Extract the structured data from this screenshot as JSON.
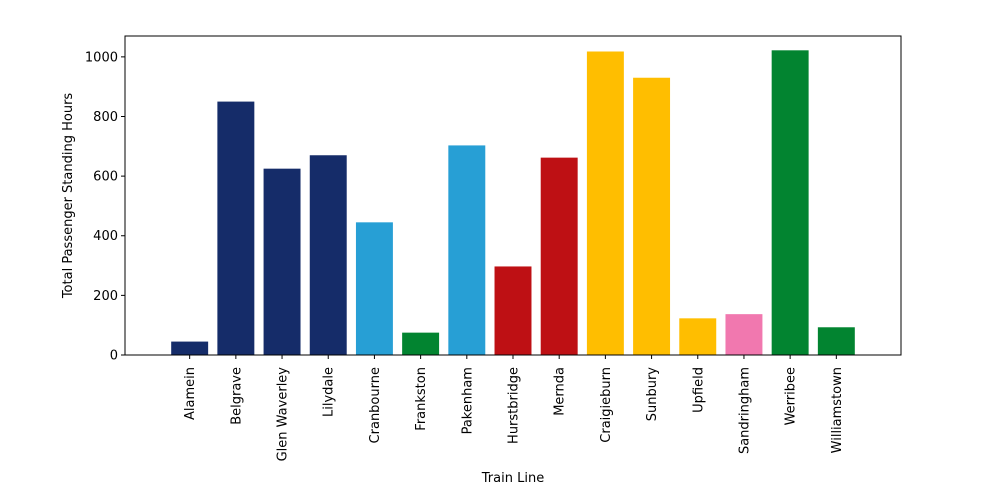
{
  "chart_data": {
    "type": "bar",
    "title": "",
    "xlabel": "Train Line",
    "ylabel": "Total Passenger Standing Hours",
    "ylim": [
      0,
      1070
    ],
    "yticks": [
      0,
      200,
      400,
      600,
      800,
      1000
    ],
    "grid": false,
    "categories": [
      "Alamein",
      "Belgrave",
      "Glen Waverley",
      "Lilydale",
      "Cranbourne",
      "Frankston",
      "Pakenham",
      "Hurstbridge",
      "Mernda",
      "Craigieburn",
      "Sunbury",
      "Upfield",
      "Sandringham",
      "Werribee",
      "Williamstown"
    ],
    "values": [
      45,
      850,
      625,
      670,
      445,
      75,
      703,
      297,
      662,
      1018,
      930,
      123,
      137,
      1022,
      93
    ],
    "colors": [
      "#152c69",
      "#152c69",
      "#152c69",
      "#152c69",
      "#279fd5",
      "#028430",
      "#279fd5",
      "#be1014",
      "#be1014",
      "#ffbe00",
      "#ffbe00",
      "#ffbe00",
      "#f178af",
      "#028430",
      "#028430"
    ]
  }
}
